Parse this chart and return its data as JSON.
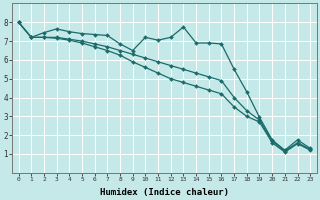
{
  "xlabel": "Humidex (Indice chaleur)",
  "background_color": "#c5e8e8",
  "grid_color": "#ffffff",
  "line_color": "#1a6b6b",
  "xlim": [
    -0.5,
    23.5
  ],
  "ylim": [
    0,
    9
  ],
  "xticks": [
    0,
    1,
    2,
    3,
    4,
    5,
    6,
    7,
    8,
    9,
    10,
    11,
    12,
    13,
    14,
    15,
    16,
    17,
    18,
    19,
    20,
    21,
    22,
    23
  ],
  "yticks": [
    1,
    2,
    3,
    4,
    5,
    6,
    7,
    8
  ],
  "series": [
    [
      8.0,
      7.2,
      7.45,
      7.65,
      7.5,
      7.4,
      7.35,
      7.3,
      6.85,
      6.5,
      7.2,
      7.05,
      7.2,
      7.75,
      6.9,
      6.9,
      6.85,
      5.5,
      4.3,
      2.95,
      1.75,
      1.2,
      1.75,
      1.3
    ],
    [
      8.0,
      7.2,
      7.2,
      7.2,
      7.1,
      7.0,
      6.85,
      6.7,
      6.5,
      6.3,
      6.1,
      5.9,
      5.7,
      5.5,
      5.3,
      5.1,
      4.9,
      4.0,
      3.3,
      2.8,
      1.7,
      1.15,
      1.6,
      1.25
    ],
    [
      8.0,
      7.2,
      7.2,
      7.15,
      7.05,
      6.9,
      6.7,
      6.5,
      6.25,
      5.9,
      5.6,
      5.3,
      5.0,
      4.8,
      4.6,
      4.4,
      4.2,
      3.5,
      3.0,
      2.7,
      1.6,
      1.1,
      1.55,
      1.2
    ]
  ],
  "markersize": 2.0,
  "linewidth": 0.9
}
